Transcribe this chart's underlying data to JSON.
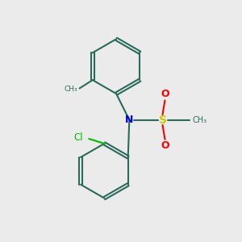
{
  "background_color": "#ebebeb",
  "atom_colors": {
    "N": "#0000cc",
    "S": "#cccc00",
    "O": "#ff0000",
    "Cl": "#00bb00",
    "C": "#2a6b5a",
    "bond": "#2a6b5a"
  },
  "figsize": [
    3.0,
    3.0
  ],
  "dpi": 100
}
